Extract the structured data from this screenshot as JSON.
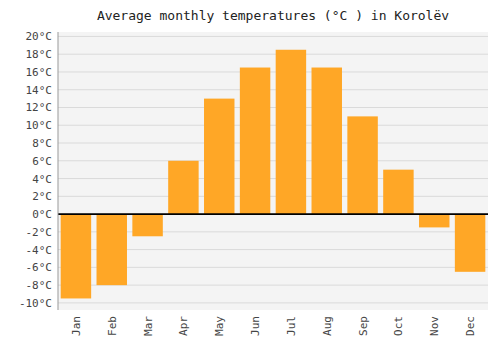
{
  "chart_data": {
    "type": "bar",
    "title": "Average monthly temperatures (°C ) in Korolëv",
    "categories": [
      "Jan",
      "Feb",
      "Mar",
      "Apr",
      "May",
      "Jun",
      "Jul",
      "Aug",
      "Sep",
      "Oct",
      "Nov",
      "Dec"
    ],
    "values": [
      -9.5,
      -8.0,
      -2.5,
      6.0,
      13.0,
      16.5,
      18.5,
      16.5,
      11.0,
      5.0,
      -1.5,
      -6.5
    ],
    "color": "#FFA726",
    "ylim": [
      -10.8,
      20.5
    ],
    "yticks": [
      {
        "value": 20,
        "label": "20°C"
      },
      {
        "value": 18,
        "label": "18°C"
      },
      {
        "value": 16,
        "label": "16°C"
      },
      {
        "value": 14,
        "label": "14°C"
      },
      {
        "value": 12,
        "label": "12°C"
      },
      {
        "value": 10,
        "label": "10°C"
      },
      {
        "value": 8,
        "label": "8°C"
      },
      {
        "value": 6,
        "label": "6°C"
      },
      {
        "value": 4,
        "label": "4°C"
      },
      {
        "value": 2,
        "label": "2°C"
      },
      {
        "value": 0,
        "label": "0°C"
      },
      {
        "value": -2,
        "label": "-2°C"
      },
      {
        "value": -4,
        "label": "-4°C"
      },
      {
        "value": -6,
        "label": "-6°C"
      },
      {
        "value": -8,
        "label": "-8°C"
      },
      {
        "value": -10,
        "label": "-10°C"
      }
    ],
    "grid": true
  }
}
